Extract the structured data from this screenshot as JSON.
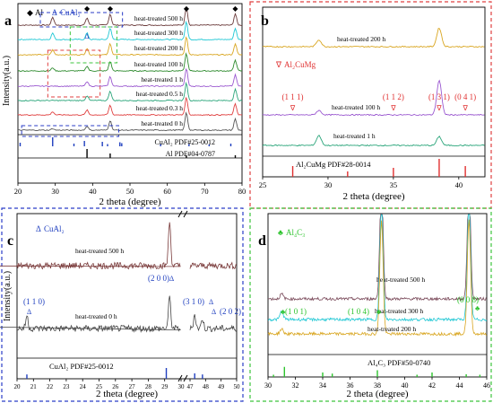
{
  "panels": [
    {
      "letter": "a",
      "frame": null,
      "ylabel": "Intensity(a.u.)",
      "xlabel": "2 theta (degree)",
      "xlim": [
        20,
        80
      ],
      "xticks": [
        20,
        30,
        40,
        50,
        60,
        70,
        80
      ],
      "legend": [
        {
          "symbol": "◆",
          "text": "Al",
          "color": "#000000"
        },
        {
          "symbol": "Δ",
          "text": "CuAl₂",
          "color": "#1f3fbf"
        }
      ],
      "series": [
        {
          "name": "heat-treated 500 h",
          "color": "#6b3b3b",
          "peaks": [
            [
              29.3,
              10
            ],
            [
              38.5,
              9
            ],
            [
              44.7,
              14
            ],
            [
              65.1,
              22
            ],
            [
              78.2,
              14
            ]
          ]
        },
        {
          "name": "heat-treated 300 h",
          "color": "#1fc7d4",
          "peaks": [
            [
              29.3,
              8
            ],
            [
              38.5,
              8
            ],
            [
              44.7,
              14
            ],
            [
              65.1,
              22
            ],
            [
              78.2,
              14
            ]
          ]
        },
        {
          "name": "heat-treated 200 h",
          "color": "#d9a621",
          "peaks": [
            [
              29.3,
              6
            ],
            [
              38.5,
              8
            ],
            [
              44.7,
              14
            ],
            [
              65.1,
              22
            ],
            [
              78.2,
              14
            ]
          ]
        },
        {
          "name": "heat-treated 100 h",
          "color": "#2e8b2e",
          "peaks": [
            [
              29.3,
              4
            ],
            [
              38.5,
              6
            ],
            [
              44.7,
              12
            ],
            [
              65.1,
              22
            ],
            [
              78.2,
              14
            ]
          ]
        },
        {
          "name": "heat-treated 1 h",
          "color": "#9b59d0",
          "peaks": [
            [
              38.5,
              6
            ],
            [
              44.7,
              12
            ],
            [
              65.1,
              22
            ],
            [
              78.2,
              14
            ]
          ]
        },
        {
          "name": "heat-treated 0.5 h",
          "color": "#2aa57a",
          "peaks": [
            [
              38.5,
              6
            ],
            [
              44.7,
              12
            ],
            [
              65.1,
              22
            ],
            [
              78.2,
              14
            ]
          ]
        },
        {
          "name": "heat-treated 0.3 h",
          "color": "#e04040",
          "peaks": [
            [
              29.3,
              4
            ],
            [
              38.5,
              6
            ],
            [
              44.7,
              12
            ],
            [
              65.1,
              22
            ],
            [
              78.2,
              14
            ]
          ]
        },
        {
          "name": "heat-treated 0 h",
          "color": "#555555",
          "peaks": [
            [
              29.3,
              2
            ],
            [
              38.5,
              5
            ],
            [
              44.7,
              12
            ],
            [
              65.1,
              22
            ],
            [
              78.2,
              14
            ]
          ]
        }
      ],
      "markers": [
        {
          "symbol": "◆",
          "x": 38.5,
          "color": "#000000"
        },
        {
          "symbol": "◆",
          "x": 44.7,
          "color": "#000000"
        },
        {
          "symbol": "◆",
          "x": 65.1,
          "color": "#000000"
        },
        {
          "symbol": "◆",
          "x": 78.2,
          "color": "#000000"
        },
        {
          "symbol": "Δ",
          "x": 38.5,
          "color": "#1f3fbf",
          "row": "lower"
        }
      ],
      "references": [
        {
          "label": "CuAl₂  PDF#25-0012",
          "color": "#1f3fbf",
          "lines": [
            [
              20.6,
              40
            ],
            [
              29.3,
              100
            ],
            [
              35.0,
              30
            ],
            [
              37.8,
              60
            ],
            [
              42.6,
              50
            ],
            [
              44.0,
              25
            ],
            [
              47.3,
              45
            ],
            [
              47.8,
              35
            ],
            [
              58.2,
              30
            ],
            [
              65.8,
              25
            ],
            [
              71.2,
              20
            ],
            [
              77.0,
              30
            ]
          ]
        },
        {
          "label": "Al  PDF#04-0787",
          "color": "#000000",
          "lines": [
            [
              38.5,
              100
            ],
            [
              44.7,
              50
            ],
            [
              65.1,
              30
            ],
            [
              78.2,
              30
            ]
          ]
        }
      ]
    },
    {
      "letter": "b",
      "frame": "#e04040",
      "xlabel": "2 theta (degree)",
      "xlim": [
        25,
        42
      ],
      "xticks": [
        25,
        30,
        35,
        40
      ],
      "legend": [
        {
          "symbol": "∇",
          "text": "Al₂CuMg",
          "color": "#e03030"
        }
      ],
      "series": [
        {
          "name": "heat-treated 200 h",
          "color": "#d9a621",
          "peaks": [
            [
              29.3,
              14
            ],
            [
              38.5,
              38
            ]
          ]
        },
        {
          "name": "heat-treated 100 h",
          "color": "#9b59d0",
          "peaks": [
            [
              29.3,
              9
            ],
            [
              38.5,
              70
            ]
          ]
        },
        {
          "name": "heat-treated 1 h",
          "color": "#2aa57a",
          "peaks": [
            [
              29.3,
              20
            ],
            [
              38.5,
              18
            ]
          ]
        }
      ],
      "annotations": [
        {
          "text": "(1 1 1)",
          "x": 27.3,
          "color": "#e03030"
        },
        {
          "text": "(1 1 2)",
          "x": 35.0,
          "color": "#e03030"
        },
        {
          "text": "(1 3 1)",
          "x": 38.5,
          "color": "#e03030"
        },
        {
          "text": "(0 4 1)",
          "x": 40.5,
          "color": "#e03030"
        }
      ],
      "references": [
        {
          "label": "Al₂CuMg  PDF#28-0014",
          "color": "#e03030",
          "lines": [
            [
              27.3,
              60
            ],
            [
              31.5,
              30
            ],
            [
              35.0,
              50
            ],
            [
              38.5,
              100
            ],
            [
              40.5,
              60
            ]
          ]
        }
      ]
    },
    {
      "letter": "c",
      "frame": "#2b3ec7",
      "ylabel": "Intensity(a.u.)",
      "xlabel": "2 theta (degree)",
      "legend": [
        {
          "symbol": "Δ",
          "text": "CuAl₂",
          "color": "#1f3fbf"
        }
      ],
      "xticks": [
        "20",
        "21",
        "22",
        "23",
        "24",
        "25",
        "26",
        "27",
        "28",
        "29",
        "30",
        "47",
        "48",
        "49",
        "50"
      ],
      "series": [
        {
          "name": "heat-treated 500 h",
          "color": "#7a3b3b",
          "peaks": [
            [
              29.3,
              62
            ]
          ]
        },
        {
          "name": "heat-treated 0 h",
          "color": "#444444",
          "peaks": [
            [
              20.6,
              18
            ],
            [
              29.3,
              44
            ],
            [
              47.3,
              20
            ],
            [
              47.8,
              14
            ]
          ]
        }
      ],
      "annotations": [
        {
          "text": "(2 0 0)",
          "color": "#1f3fbf"
        },
        {
          "text": "(1 1 0)",
          "color": "#1f3fbf"
        },
        {
          "text": "(3 1 0)",
          "color": "#1f3fbf"
        },
        {
          "text": "(2 0 2)",
          "color": "#1f3fbf"
        }
      ],
      "references": [
        {
          "label": "CuAl₂  PDF#25-0012",
          "color": "#1f3fbf",
          "lines": [
            [
              20.6,
              40
            ],
            [
              29.1,
              100
            ],
            [
              47.3,
              50
            ],
            [
              47.8,
              40
            ]
          ]
        }
      ]
    },
    {
      "letter": "d",
      "frame": "#3cc43c",
      "xlabel": "2 theta (degree)",
      "xlim": [
        30,
        46
      ],
      "xticks": [
        30,
        32,
        34,
        36,
        38,
        40,
        42,
        44,
        46
      ],
      "legend": [
        {
          "symbol": "♣",
          "text": "Al₄C₃",
          "color": "#2ec42e"
        }
      ],
      "series": [
        {
          "name": "heat-treated 500 h",
          "color": "#7a4a5a",
          "peaks": [
            [
              31.0,
              6
            ],
            [
              38.3,
              140
            ],
            [
              44.7,
              140
            ]
          ]
        },
        {
          "name": "heat-treated 300 h",
          "color": "#1fc7d4",
          "peaks": [
            [
              31.0,
              10
            ],
            [
              38.3,
              140
            ],
            [
              44.7,
              140
            ]
          ]
        },
        {
          "name": "heat-treated 200 h",
          "color": "#d9a621",
          "peaks": [
            [
              31.0,
              6
            ],
            [
              38.3,
              140
            ],
            [
              44.7,
              140
            ]
          ]
        }
      ],
      "annotations": [
        {
          "text": "(1 0 1)",
          "color": "#2ec42e"
        },
        {
          "text": "(1 0 4)",
          "color": "#2ec42e"
        },
        {
          "text": "(0 0 8)",
          "color": "#2ec42e"
        }
      ],
      "references": [
        {
          "label": "Al₄C₃  PDF#50-0740",
          "color": "#2ec42e",
          "lines": [
            [
              30.4,
              10
            ],
            [
              31.2,
              45
            ],
            [
              34.0,
              20
            ],
            [
              34.7,
              15
            ],
            [
              38.0,
              30
            ],
            [
              40.9,
              10
            ],
            [
              42.0,
              20
            ],
            [
              44.5,
              12
            ],
            [
              45.5,
              10
            ]
          ]
        }
      ]
    }
  ]
}
